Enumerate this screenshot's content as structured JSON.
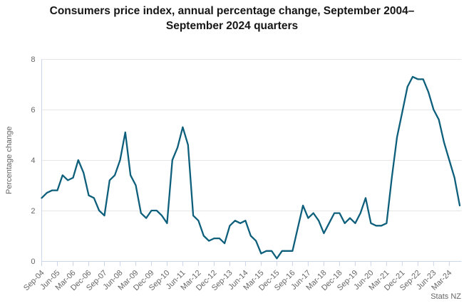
{
  "credits": "Stats NZ",
  "colors": {
    "line": "#0e5f7c",
    "grid": "#e6e6e6",
    "axis": "#ccd6eb",
    "tick_label": "#666666",
    "title": "#161616",
    "credits": "#666666"
  },
  "chart_data": {
    "type": "line",
    "title": "Consumers price index, annual percentage change, September 2004–September 2024 quarters",
    "xlabel": "",
    "ylabel": "Percentage change",
    "ylim": [
      0,
      8
    ],
    "yticks": [
      0,
      2,
      4,
      6,
      8
    ],
    "label_every": 3,
    "grid": "horizontal",
    "legend": "off",
    "categories": [
      "Sep-04",
      "Dec-04",
      "Mar-05",
      "Jun-05",
      "Sep-05",
      "Dec-05",
      "Mar-06",
      "Jun-06",
      "Sep-06",
      "Dec-06",
      "Mar-07",
      "Jun-07",
      "Sep-07",
      "Dec-07",
      "Mar-08",
      "Jun-08",
      "Sep-08",
      "Dec-08",
      "Mar-09",
      "Jun-09",
      "Sep-09",
      "Dec-09",
      "Mar-10",
      "Jun-10",
      "Sep-10",
      "Dec-10",
      "Mar-11",
      "Jun-11",
      "Sep-11",
      "Dec-11",
      "Mar-12",
      "Jun-12",
      "Sep-12",
      "Dec-12",
      "Mar-13",
      "Jun-13",
      "Sep-13",
      "Dec-13",
      "Mar-14",
      "Jun-14",
      "Sep-14",
      "Dec-14",
      "Mar-15",
      "Jun-15",
      "Sep-15",
      "Dec-15",
      "Mar-16",
      "Jun-16",
      "Sep-16",
      "Dec-16",
      "Mar-17",
      "Jun-17",
      "Sep-17",
      "Dec-17",
      "Mar-18",
      "Jun-18",
      "Sep-18",
      "Dec-18",
      "Mar-19",
      "Jun-19",
      "Sep-19",
      "Dec-19",
      "Mar-20",
      "Jun-20",
      "Sep-20",
      "Dec-20",
      "Mar-21",
      "Jun-21",
      "Sep-21",
      "Dec-21",
      "Mar-22",
      "Jun-22",
      "Sep-22",
      "Dec-22",
      "Mar-23",
      "Jun-23",
      "Sep-23",
      "Dec-23",
      "Mar-24",
      "Jun-24",
      "Sep-24"
    ],
    "values": [
      2.5,
      2.7,
      2.8,
      2.8,
      3.4,
      3.2,
      3.3,
      4.0,
      3.5,
      2.6,
      2.5,
      2.0,
      1.8,
      3.2,
      3.4,
      4.0,
      5.1,
      3.4,
      3.0,
      1.9,
      1.7,
      2.0,
      2.0,
      1.8,
      1.5,
      4.0,
      4.5,
      5.3,
      4.6,
      1.8,
      1.6,
      1.0,
      0.8,
      0.9,
      0.9,
      0.7,
      1.4,
      1.6,
      1.5,
      1.6,
      1.0,
      0.8,
      0.3,
      0.4,
      0.4,
      0.1,
      0.4,
      0.4,
      0.4,
      1.3,
      2.2,
      1.7,
      1.9,
      1.6,
      1.1,
      1.5,
      1.9,
      1.9,
      1.5,
      1.7,
      1.5,
      1.9,
      2.5,
      1.5,
      1.4,
      1.4,
      1.5,
      3.3,
      4.9,
      5.9,
      6.9,
      7.3,
      7.2,
      7.2,
      6.7,
      6.0,
      5.6,
      4.7,
      4.0,
      3.3,
      2.2
    ]
  }
}
